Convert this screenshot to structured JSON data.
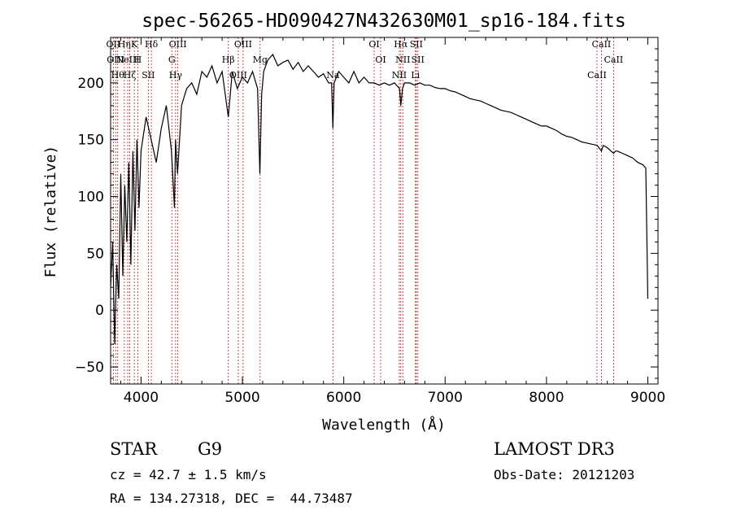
{
  "chart_data": {
    "type": "line",
    "title": "spec-56265-HD090427N432630M01_sp16-184.fits",
    "xlabel": "Wavelength (Å)",
    "ylabel": "Flux (relative)",
    "xlim": [
      3700,
      9100
    ],
    "ylim": [
      -65,
      240
    ],
    "xticks": [
      4000,
      5000,
      6000,
      7000,
      8000,
      9000
    ],
    "yticks": [
      -50,
      0,
      50,
      100,
      150,
      200
    ],
    "grid": false,
    "series": [
      {
        "name": "flux",
        "x": [
          3700,
          3720,
          3740,
          3760,
          3780,
          3800,
          3820,
          3840,
          3860,
          3880,
          3900,
          3920,
          3940,
          3960,
          3980,
          4000,
          4050,
          4100,
          4150,
          4200,
          4250,
          4300,
          4330,
          4340,
          4360,
          4400,
          4450,
          4500,
          4550,
          4600,
          4650,
          4700,
          4750,
          4800,
          4861,
          4900,
          4950,
          5000,
          5050,
          5100,
          5150,
          5172,
          5190,
          5210,
          5250,
          5300,
          5350,
          5400,
          5450,
          5500,
          5550,
          5600,
          5650,
          5700,
          5750,
          5800,
          5850,
          5880,
          5893,
          5905,
          5950,
          6000,
          6050,
          6100,
          6150,
          6200,
          6250,
          6300,
          6350,
          6400,
          6450,
          6500,
          6550,
          6563,
          6580,
          6600,
          6650,
          6700,
          6750,
          6800,
          6850,
          6900,
          6950,
          7000,
          7050,
          7100,
          7150,
          7200,
          7250,
          7300,
          7350,
          7400,
          7450,
          7500,
          7550,
          7600,
          7650,
          7700,
          7750,
          7800,
          7850,
          7900,
          7950,
          8000,
          8050,
          8100,
          8150,
          8200,
          8250,
          8300,
          8350,
          8400,
          8450,
          8500,
          8542,
          8560,
          8600,
          8662,
          8680,
          8700,
          8750,
          8800,
          8850,
          8900,
          8950,
          8980,
          9000
        ],
        "y": [
          20,
          60,
          -30,
          40,
          10,
          120,
          30,
          110,
          60,
          130,
          40,
          140,
          70,
          150,
          90,
          140,
          170,
          150,
          130,
          160,
          180,
          140,
          90,
          150,
          120,
          180,
          195,
          200,
          190,
          210,
          205,
          215,
          200,
          210,
          170,
          210,
          195,
          205,
          200,
          210,
          195,
          120,
          190,
          210,
          220,
          225,
          215,
          218,
          220,
          212,
          218,
          210,
          215,
          210,
          205,
          208,
          200,
          200,
          160,
          200,
          210,
          205,
          200,
          210,
          200,
          205,
          200,
          200,
          198,
          200,
          198,
          200,
          195,
          180,
          195,
          200,
          200,
          198,
          200,
          198,
          198,
          196,
          195,
          195,
          193,
          192,
          190,
          188,
          186,
          185,
          184,
          182,
          180,
          178,
          176,
          175,
          174,
          172,
          170,
          168,
          166,
          164,
          162,
          162,
          160,
          158,
          155,
          153,
          152,
          150,
          148,
          147,
          146,
          145,
          140,
          145,
          143,
          138,
          140,
          140,
          138,
          136,
          134,
          130,
          128,
          125,
          10
        ]
      }
    ],
    "line_markers": [
      {
        "wavelength": 3727,
        "label": "OII"
      },
      {
        "wavelength": 3750,
        "label": "OIII"
      },
      {
        "wavelength": 3770,
        "label": "Hθ"
      },
      {
        "wavelength": 3835,
        "label": "Hη"
      },
      {
        "wavelength": 3869,
        "label": "NeIII"
      },
      {
        "wavelength": 3889,
        "label": "Hζ"
      },
      {
        "wavelength": 3934,
        "label": "K"
      },
      {
        "wavelength": 3968,
        "label": "H"
      },
      {
        "wavelength": 4072,
        "label": "SII"
      },
      {
        "wavelength": 4102,
        "label": "Hδ"
      },
      {
        "wavelength": 4304,
        "label": "G"
      },
      {
        "wavelength": 4341,
        "label": "Hγ"
      },
      {
        "wavelength": 4363,
        "label": "OIII"
      },
      {
        "wavelength": 4861,
        "label": "Hβ"
      },
      {
        "wavelength": 4959,
        "label": "OIII"
      },
      {
        "wavelength": 5007,
        "label": "OIII"
      },
      {
        "wavelength": 5175,
        "label": "Mg"
      },
      {
        "wavelength": 5893,
        "label": "Na"
      },
      {
        "wavelength": 6300,
        "label": "OI"
      },
      {
        "wavelength": 6364,
        "label": "OI"
      },
      {
        "wavelength": 6548,
        "label": "NII"
      },
      {
        "wavelength": 6563,
        "label": "Hα"
      },
      {
        "wavelength": 6583,
        "label": "NII"
      },
      {
        "wavelength": 6707,
        "label": "Li"
      },
      {
        "wavelength": 6716,
        "label": "SII"
      },
      {
        "wavelength": 6731,
        "label": "SII"
      },
      {
        "wavelength": 8498,
        "label": "CaII"
      },
      {
        "wavelength": 8542,
        "label": "CaII"
      },
      {
        "wavelength": 8662,
        "label": "CaII"
      }
    ]
  },
  "info": {
    "object_type": "STAR",
    "subclass": "G9",
    "survey": "LAMOST DR3",
    "cz": "cz = 42.7 ± 1.5 km/s",
    "obs_date": "Obs-Date: 20121203",
    "coords": "RA = 134.27318, DEC =  44.73487"
  }
}
